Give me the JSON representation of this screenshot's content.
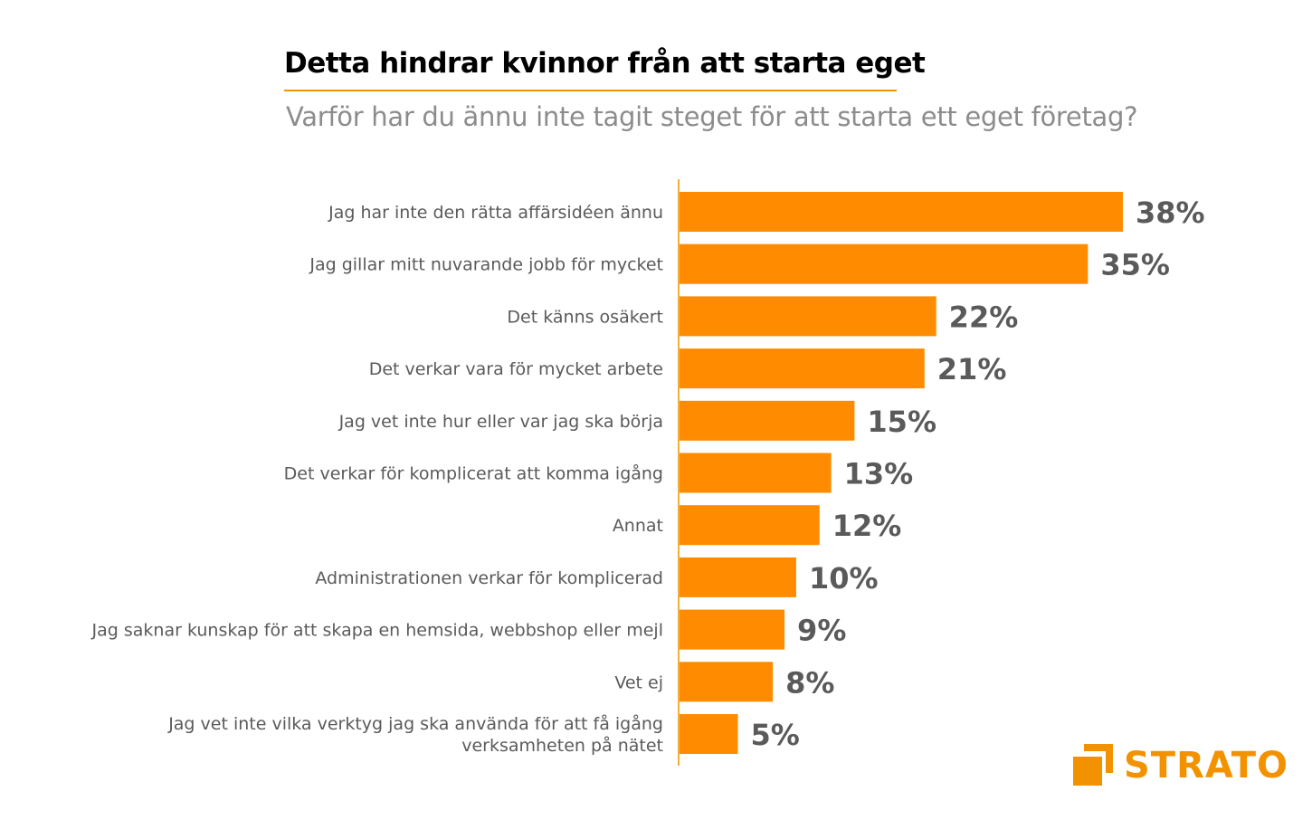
{
  "chart_data": {
    "type": "bar",
    "orientation": "horizontal",
    "title": "Detta hindrar kvinnor från att starta eget",
    "subtitle": "Varför har du ännu inte tagit steget för att starta ett eget företag?",
    "categories": [
      [
        "Jag har inte den rätta affärsidéen ännu"
      ],
      [
        "Jag gillar mitt nuvarande jobb för mycket"
      ],
      [
        "Det känns osäkert"
      ],
      [
        "Det verkar vara för mycket arbete"
      ],
      [
        "Jag vet inte hur eller var jag ska börja"
      ],
      [
        "Det verkar för komplicerat att komma igång"
      ],
      [
        "Annat"
      ],
      [
        "Administrationen verkar för komplicerad"
      ],
      [
        "Jag saknar kunskap för att skapa en hemsida, webbshop eller mejl"
      ],
      [
        "Vet ej"
      ],
      [
        "Jag vet inte vilka verktyg jag ska använda för att få igång",
        "verksamheten på nätet"
      ]
    ],
    "values": [
      38,
      35,
      22,
      21,
      15,
      13,
      12,
      10,
      9,
      8,
      5
    ],
    "value_labels": [
      "38%",
      "35%",
      "22%",
      "21%",
      "15%",
      "13%",
      "12%",
      "10%",
      "9%",
      "8%",
      "5%"
    ],
    "xlim": [
      0,
      38
    ],
    "grid": false,
    "bar_color": "#ff8c00",
    "label_color": "#5a5a5a",
    "value_color": "#5a5a5a"
  },
  "brand": {
    "name": "STRATO",
    "color": "#f39200"
  }
}
